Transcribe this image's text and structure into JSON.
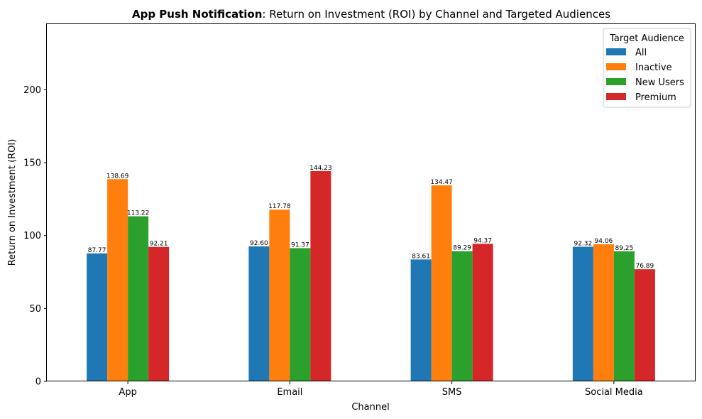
{
  "chart_data": {
    "type": "bar",
    "title_bold": "App Push Notification",
    "title_rest": ": Return on Investment (ROI) by Channel and Targeted Audiences",
    "xlabel": "Channel",
    "ylabel": "Return on Investment (ROI)",
    "categories": [
      "App",
      "Email",
      "SMS",
      "Social Media"
    ],
    "ylim": [
      0,
      245
    ],
    "yticks": [
      0,
      50,
      100,
      150,
      200
    ],
    "grid": false,
    "legend": {
      "title": "Target Audience",
      "placement": "top-right"
    },
    "series": [
      {
        "name": "All",
        "color": "#1f77b4",
        "values": [
          87.77,
          92.6,
          83.61,
          92.32
        ]
      },
      {
        "name": "Inactive",
        "color": "#ff7f0e",
        "values": [
          138.69,
          117.78,
          134.47,
          94.06
        ]
      },
      {
        "name": "New Users",
        "color": "#2ca02c",
        "values": [
          113.22,
          91.37,
          89.29,
          89.25
        ]
      },
      {
        "name": "Premium",
        "color": "#d62728",
        "values": [
          92.21,
          144.23,
          94.37,
          76.89
        ]
      }
    ]
  }
}
